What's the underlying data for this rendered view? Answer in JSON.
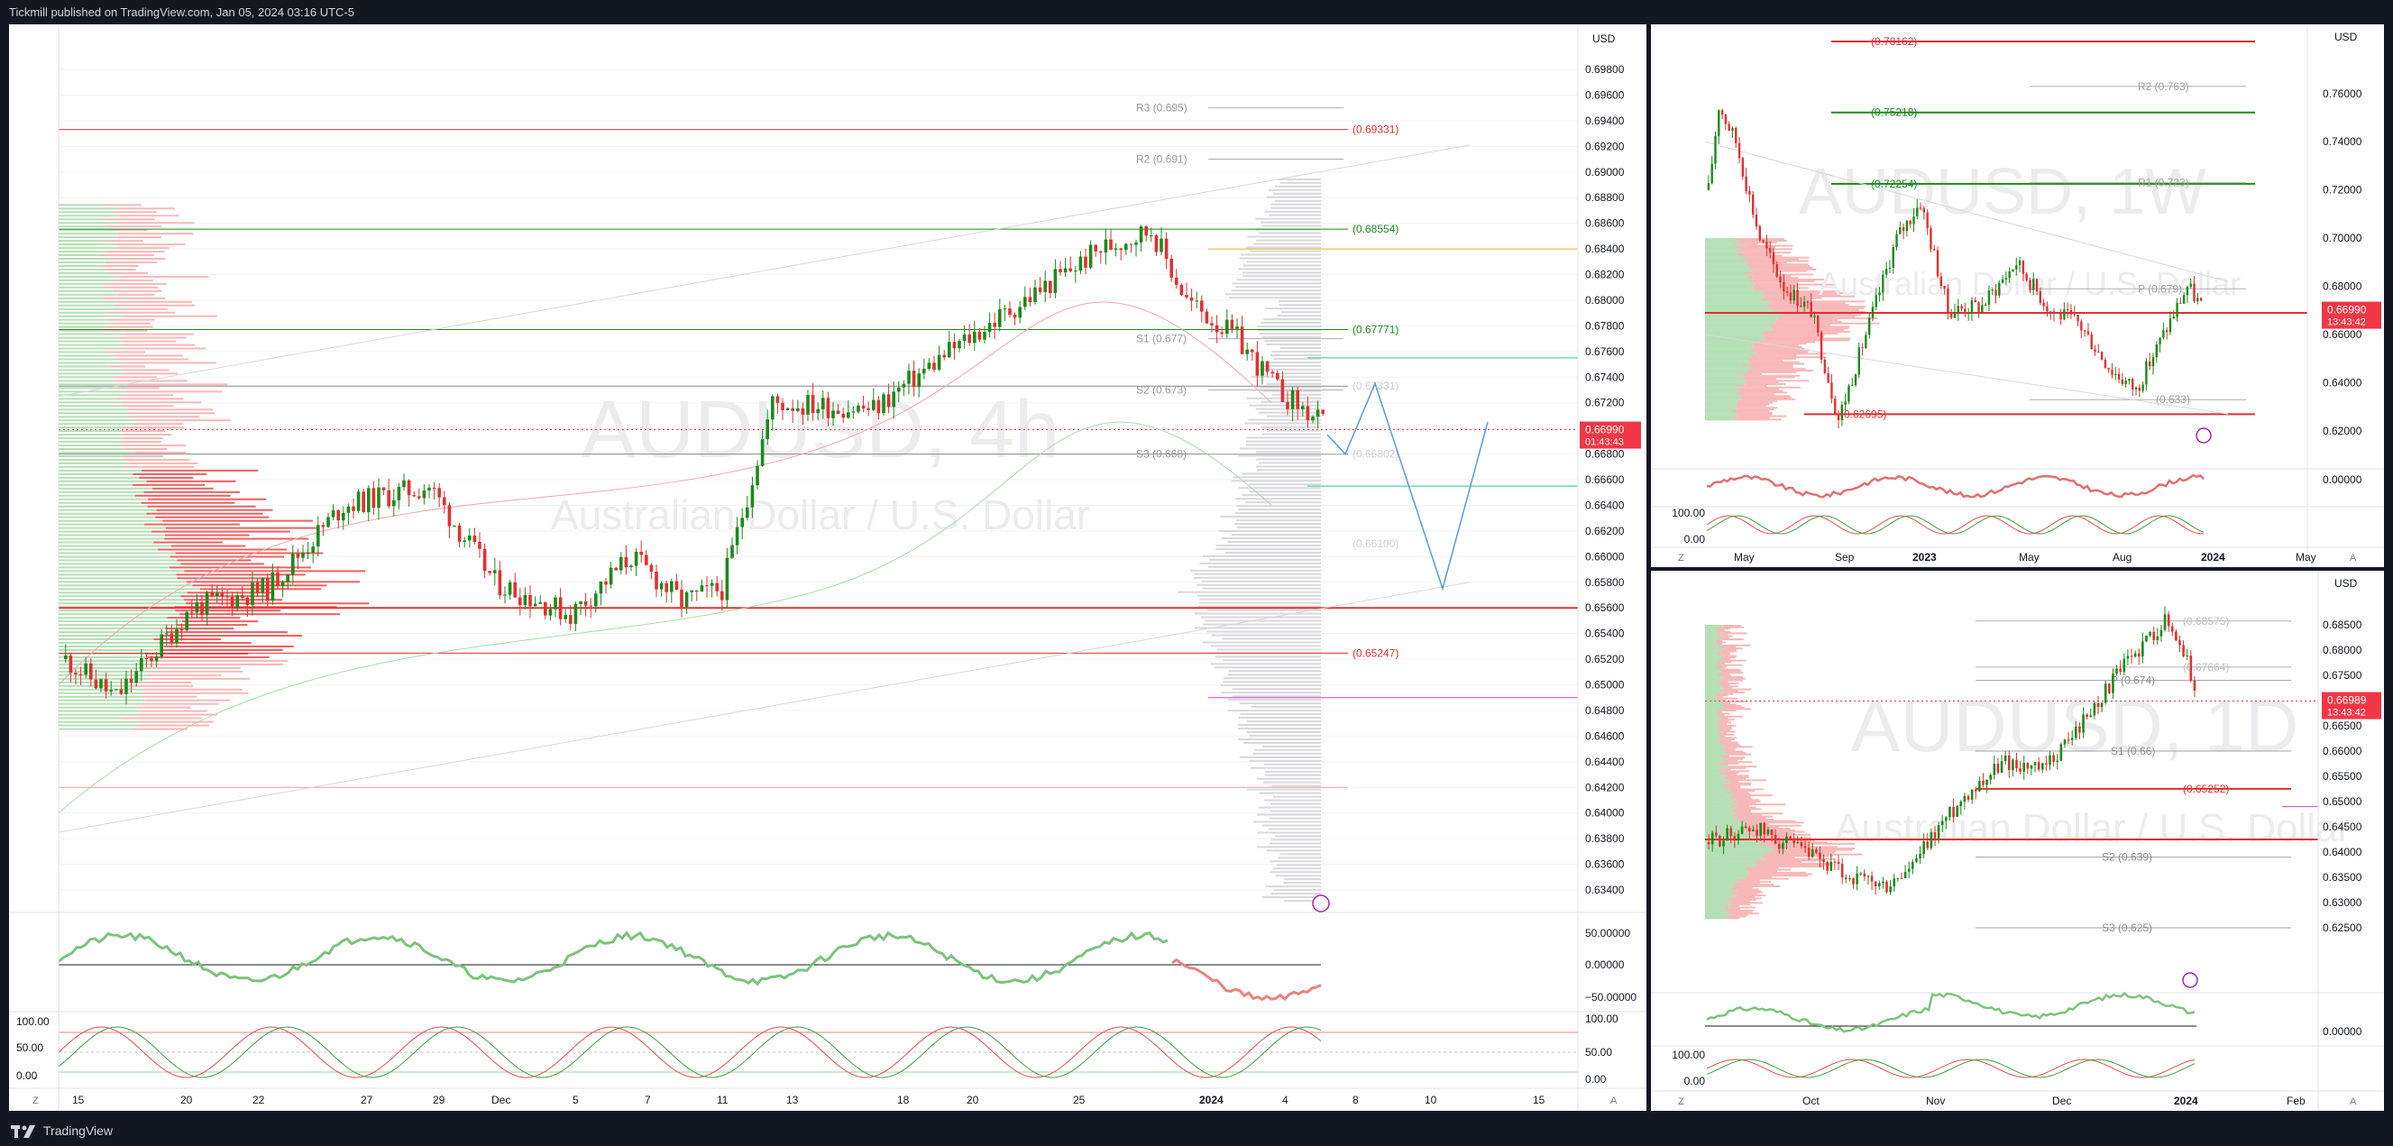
{
  "header": {
    "publish_text": "Tickmill published on TradingView.com, Jan 05, 2024 03:16 UTC-5"
  },
  "footer": {
    "brand": "TradingView"
  },
  "colors": {
    "up": "#1b8a1b",
    "down": "#e03030",
    "price_tag": "#f23645",
    "grid": "#f0f3fa",
    "profile_gray": "#d9d9dc"
  },
  "main": {
    "currency": "USD",
    "watermark_symbol": "AUDUSD, 4h",
    "watermark_name": "Australian Dollar / U.S. Dollar",
    "price_tag": "0.66990",
    "countdown": "01:43:43",
    "y_ticks": [
      "0.69800",
      "0.69600",
      "0.69400",
      "0.69200",
      "0.69000",
      "0.68800",
      "0.68600",
      "0.68400",
      "0.68200",
      "0.68000",
      "0.67800",
      "0.67600",
      "0.67400",
      "0.67200",
      "0.67000",
      "0.66800",
      "0.66600",
      "0.66400",
      "0.66200",
      "0.66000",
      "0.65800",
      "0.65600",
      "0.65400",
      "0.65200",
      "0.65000",
      "0.64800",
      "0.64600",
      "0.64400",
      "0.64200",
      "0.64000",
      "0.63800",
      "0.63600",
      "0.63400"
    ],
    "x_ticks": [
      "15",
      "20",
      "22",
      "27",
      "29",
      "Dec",
      "5",
      "7",
      "11",
      "13",
      "18",
      "20",
      "25",
      "2024",
      "4",
      "8",
      "10",
      "15"
    ],
    "pivot_labels": [
      "R3 (0.695)",
      "R2 (0.691)",
      "S1 (0.677)",
      "S2 (0.673)",
      "S3 (0.668)"
    ],
    "level_labels": [
      "(0.69331)",
      "(0.68554)",
      "(0.67771)",
      "(0.65247)"
    ],
    "level_labels_faint": [
      "(0.67331)",
      "(0.66802)",
      "(0.66100)"
    ],
    "osc1_ticks": [
      "50.00000",
      "0.00000",
      "−50.00000"
    ],
    "osc2_ticks": [
      "100.00",
      "50.00",
      "0.00"
    ],
    "osc2_left_ticks": [
      "100.00",
      "50.00",
      "0.00"
    ],
    "corner_left": "Z",
    "corner_right": "A"
  },
  "weekly": {
    "currency": "USD",
    "watermark_symbol": "AUDUSD, 1W",
    "watermark_name": "Australian Dollar / U.S. Dollar",
    "price_tag": "0.66990",
    "countdown": "13:43:42",
    "y_ticks": [
      "0.76000",
      "0.74000",
      "0.72000",
      "0.70000",
      "0.68000",
      "0.66000",
      "0.64000",
      "0.62000"
    ],
    "x_ticks": [
      "May",
      "Sep",
      "2023",
      "May",
      "Aug",
      "2024",
      "May"
    ],
    "pivot_labels": [
      "R2 (0.763)",
      "R1 (0.723)",
      "P (0.679)",
      "(0.633)"
    ],
    "level_labels": [
      "(0.78162)",
      "(0.75218)",
      "(0.72254)",
      "(0.62695)"
    ],
    "osc1_ticks": [
      "0.00000"
    ],
    "osc2_left_ticks": [
      "100.00",
      "0.00"
    ],
    "corner_left": "Z",
    "corner_right": "A"
  },
  "daily": {
    "currency": "USD",
    "watermark_symbol": "AUDUSD, 1D",
    "watermark_name": "Australian Dollar / U.S. Dollar",
    "price_tag": "0.66989",
    "countdown": "13:43:42",
    "y_ticks": [
      "0.68500",
      "0.68000",
      "0.67500",
      "0.67000",
      "0.66500",
      "0.66000",
      "0.65500",
      "0.65000",
      "0.64500",
      "0.64000",
      "0.63500",
      "0.63000",
      "0.62500"
    ],
    "x_ticks": [
      "Oct",
      "Nov",
      "Dec",
      "2024",
      "Feb"
    ],
    "pivot_labels": [
      "P (0.674)",
      "S1 (0.66)",
      "S2 (0.639)",
      "S3 (0.625)"
    ],
    "level_labels": [
      "(0.68575)",
      "(0.67664)",
      "(0.65252)"
    ],
    "osc1_ticks": [
      "0.00000"
    ],
    "osc2_left_ticks": [
      "100.00",
      "0.00"
    ],
    "corner_left": "Z",
    "corner_right": "A"
  }
}
